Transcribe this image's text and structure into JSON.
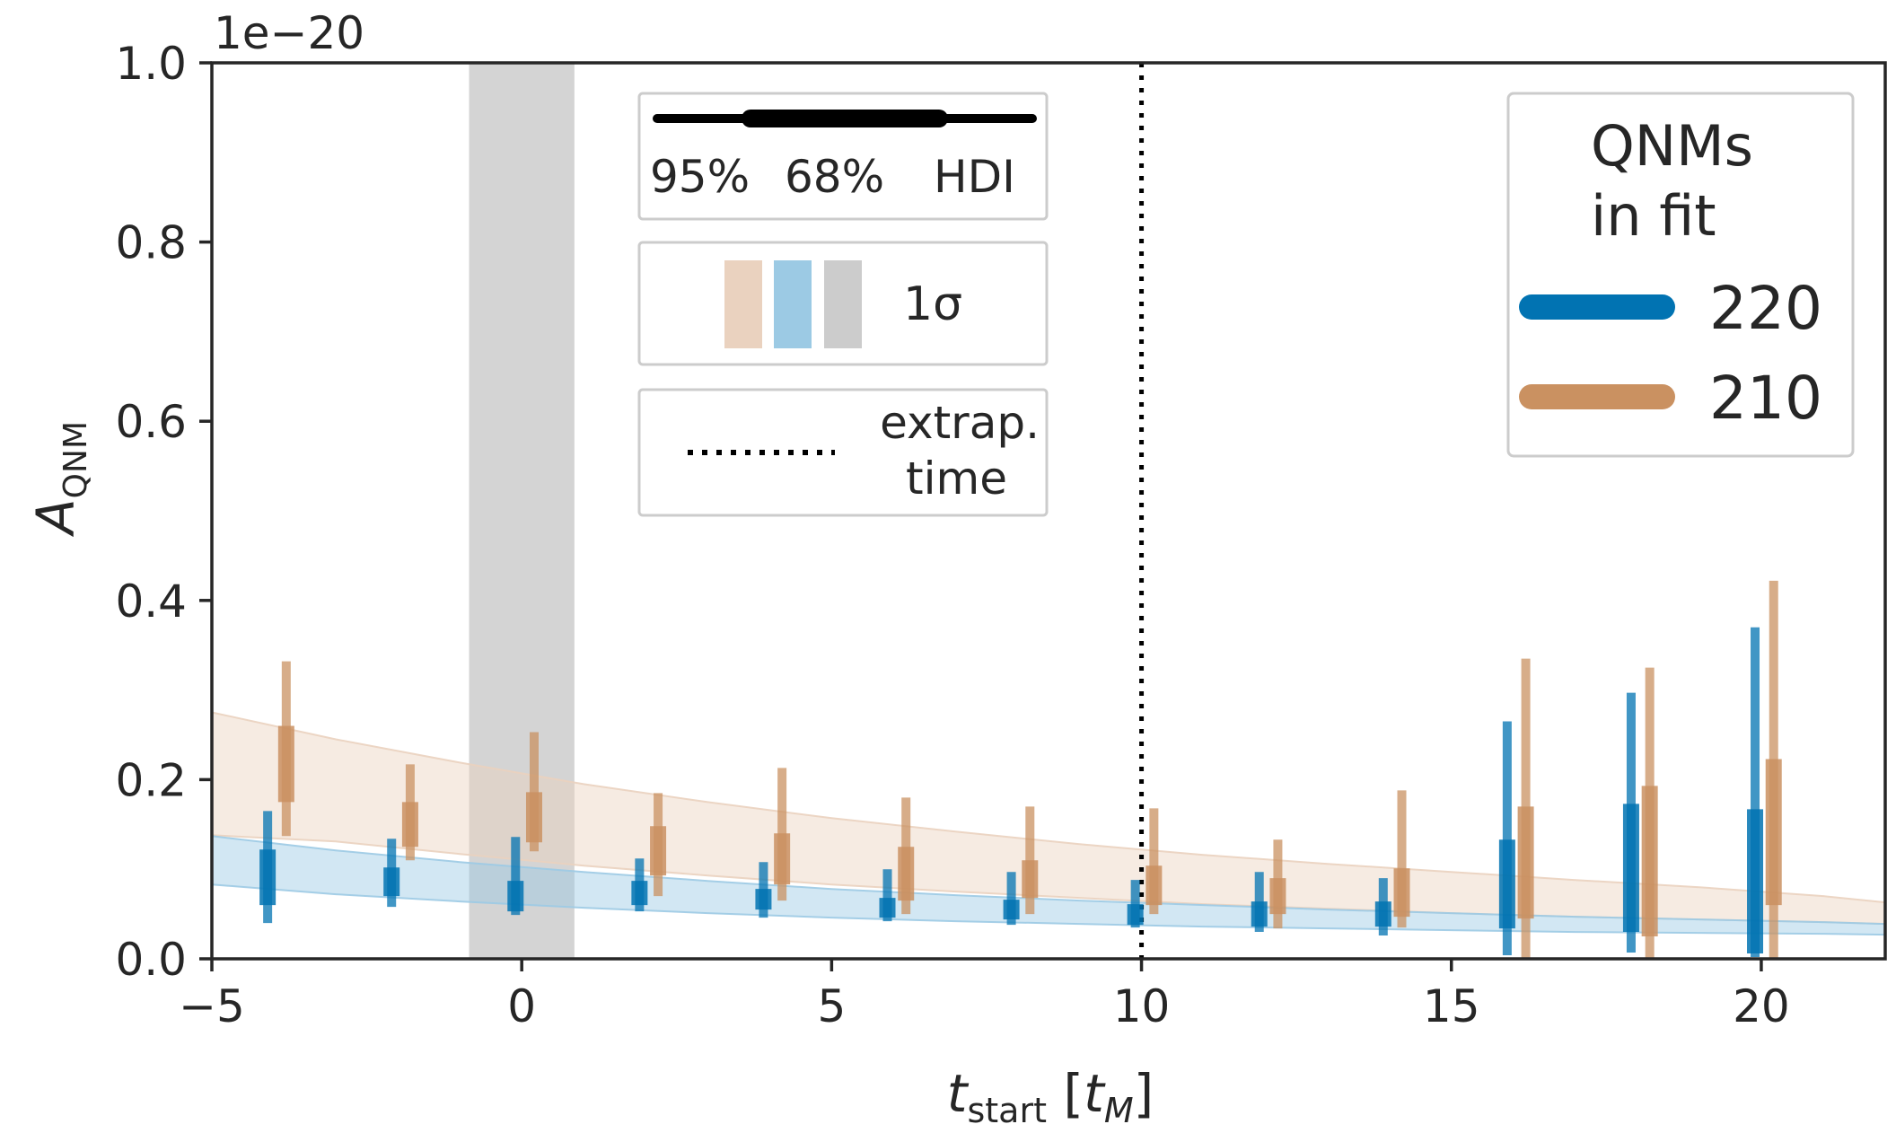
{
  "chart_data": {
    "type": "errorbar",
    "title": "",
    "xlabel_main": "t",
    "xlabel_sub": "start",
    "xlabel_unit_open": " [",
    "xlabel_unit_main": "t",
    "xlabel_unit_sub": "M",
    "xlabel_unit_close": "]",
    "ylabel_main": "A",
    "ylabel_sub": "QNM",
    "y_offset_text": "1e−20",
    "xlim": [
      -5,
      22
    ],
    "ylim": [
      0.0,
      1.0
    ],
    "x_ticks": [
      -5,
      0,
      5,
      10,
      15,
      20
    ],
    "x_tick_labels": [
      "−5",
      "0",
      "5",
      "10",
      "15",
      "20"
    ],
    "y_ticks": [
      0.0,
      0.2,
      0.4,
      0.6,
      0.8,
      1.0
    ],
    "y_tick_labels": [
      "0.0",
      "0.2",
      "0.4",
      "0.6",
      "0.8",
      "1.0"
    ],
    "shaded_region": {
      "x": [
        -0.85,
        0.85
      ],
      "color": "#d4d4d4"
    },
    "extrapolation_time": 10,
    "series": [
      {
        "name": "220",
        "color": "#0173b2",
        "x_offset": -0.1,
        "points": [
          {
            "x": -4,
            "hdi95": [
              0.04,
              0.165
            ],
            "hdi68": [
              0.06,
              0.122
            ]
          },
          {
            "x": -2,
            "hdi95": [
              0.058,
              0.134
            ],
            "hdi68": [
              0.07,
              0.102
            ]
          },
          {
            "x": 0,
            "hdi95": [
              0.049,
              0.136
            ],
            "hdi68": [
              0.053,
              0.087
            ]
          },
          {
            "x": 2,
            "hdi95": [
              0.053,
              0.112
            ],
            "hdi68": [
              0.06,
              0.087
            ]
          },
          {
            "x": 4,
            "hdi95": [
              0.046,
              0.108
            ],
            "hdi68": [
              0.055,
              0.078
            ]
          },
          {
            "x": 6,
            "hdi95": [
              0.042,
              0.1
            ],
            "hdi68": [
              0.046,
              0.068
            ]
          },
          {
            "x": 8,
            "hdi95": [
              0.038,
              0.097
            ],
            "hdi68": [
              0.044,
              0.066
            ]
          },
          {
            "x": 10,
            "hdi95": [
              0.035,
              0.088
            ],
            "hdi68": [
              0.038,
              0.061
            ]
          },
          {
            "x": 12,
            "hdi95": [
              0.03,
              0.097
            ],
            "hdi68": [
              0.036,
              0.064
            ]
          },
          {
            "x": 14,
            "hdi95": [
              0.026,
              0.09
            ],
            "hdi68": [
              0.036,
              0.064
            ]
          },
          {
            "x": 16,
            "hdi95": [
              0.004,
              0.265
            ],
            "hdi68": [
              0.034,
              0.133
            ]
          },
          {
            "x": 18,
            "hdi95": [
              0.007,
              0.297
            ],
            "hdi68": [
              0.03,
              0.173
            ]
          },
          {
            "x": 20,
            "hdi95": [
              0.002,
              0.37
            ],
            "hdi68": [
              0.006,
              0.167
            ]
          }
        ],
        "band_lower": [
          0.083,
          0.072,
          0.064,
          0.057,
          0.051,
          0.046,
          0.042,
          0.039,
          0.036,
          0.034,
          0.032,
          0.03,
          0.029,
          0.028,
          0.027
        ],
        "band_upper": [
          0.137,
          0.121,
          0.108,
          0.097,
          0.087,
          0.078,
          0.071,
          0.065,
          0.06,
          0.055,
          0.051,
          0.047,
          0.044,
          0.041,
          0.039
        ]
      },
      {
        "name": "210",
        "color": "#ca9161",
        "x_offset": 0.2,
        "points": [
          {
            "x": -4,
            "hdi95": [
              0.137,
              0.332
            ],
            "hdi68": [
              0.175,
              0.26
            ]
          },
          {
            "x": -2,
            "hdi95": [
              0.11,
              0.217
            ],
            "hdi68": [
              0.125,
              0.175
            ]
          },
          {
            "x": 0,
            "hdi95": [
              0.12,
              0.253
            ],
            "hdi68": [
              0.13,
              0.186
            ]
          },
          {
            "x": 2,
            "hdi95": [
              0.07,
              0.185
            ],
            "hdi68": [
              0.093,
              0.148
            ]
          },
          {
            "x": 4,
            "hdi95": [
              0.065,
              0.213
            ],
            "hdi68": [
              0.083,
              0.14
            ]
          },
          {
            "x": 6,
            "hdi95": [
              0.05,
              0.18
            ],
            "hdi68": [
              0.065,
              0.125
            ]
          },
          {
            "x": 8,
            "hdi95": [
              0.05,
              0.17
            ],
            "hdi68": [
              0.068,
              0.11
            ]
          },
          {
            "x": 10,
            "hdi95": [
              0.05,
              0.168
            ],
            "hdi68": [
              0.06,
              0.104
            ]
          },
          {
            "x": 12,
            "hdi95": [
              0.034,
              0.133
            ],
            "hdi68": [
              0.05,
              0.09
            ]
          },
          {
            "x": 14,
            "hdi95": [
              0.035,
              0.188
            ],
            "hdi68": [
              0.047,
              0.101
            ]
          },
          {
            "x": 16,
            "hdi95": [
              0.0,
              0.335
            ],
            "hdi68": [
              0.045,
              0.17
            ]
          },
          {
            "x": 18,
            "hdi95": [
              0.0,
              0.325
            ],
            "hdi68": [
              0.025,
              0.193
            ]
          },
          {
            "x": 20,
            "hdi95": [
              0.0,
              0.422
            ],
            "hdi68": [
              0.06,
              0.223
            ]
          }
        ],
        "band_lower": [
          0.138,
          0.131,
          0.117,
          0.104,
          0.093,
          0.083,
          0.075,
          0.068,
          0.061,
          0.056,
          0.051,
          0.047,
          0.044,
          0.041,
          0.039
        ],
        "band_upper": [
          0.275,
          0.245,
          0.219,
          0.195,
          0.175,
          0.157,
          0.142,
          0.128,
          0.116,
          0.106,
          0.097,
          0.088,
          0.08,
          0.07,
          0.063
        ]
      }
    ],
    "band_x": [
      -5,
      -3,
      -1,
      1,
      3,
      5,
      7,
      9,
      11,
      13,
      15,
      17,
      19,
      21,
      22
    ],
    "legend_hdi": {
      "labels": [
        "95%",
        "68%",
        "HDI"
      ],
      "placement": "top-center"
    },
    "legend_sigma": {
      "label": "1σ",
      "swatch_colors": [
        "#ead2bf",
        "#9ccae4",
        "#cccccc"
      ]
    },
    "legend_extrap": {
      "line1": "extrap.",
      "line2": "time"
    },
    "legend_qnm": {
      "title_line1": "QNMs",
      "title_line2": "in fit",
      "placement": "upper right"
    }
  }
}
